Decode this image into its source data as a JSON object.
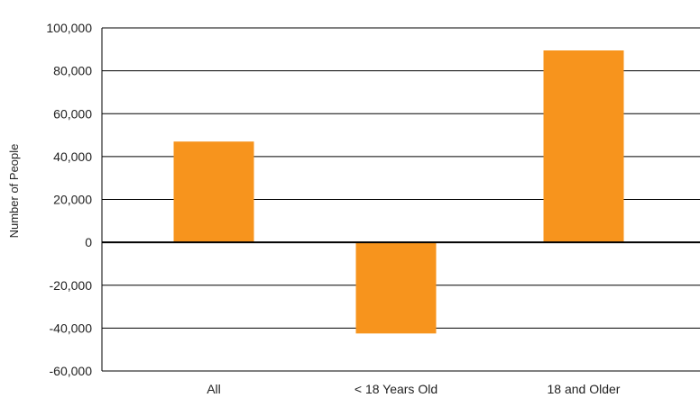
{
  "chart_data": {
    "type": "bar",
    "categories": [
      "All",
      "< 18 Years Old",
      "18 and Older"
    ],
    "values": [
      47000,
      -42500,
      89500
    ],
    "ylabel": "Number of People",
    "xlabel": "",
    "ylim": [
      -60000,
      100000
    ],
    "yticks": [
      100000,
      80000,
      60000,
      40000,
      20000,
      0,
      -20000,
      -40000,
      -60000
    ],
    "ytick_labels": [
      "100,000",
      "80,000",
      "60,000",
      "40,000",
      "20,000",
      "0",
      "-20,000",
      "-40,000",
      "-60,000"
    ],
    "grid": true,
    "legend": "none",
    "colors": {
      "bar": "#F7941D",
      "grid": "#000000",
      "zero_line": "#000000"
    }
  }
}
